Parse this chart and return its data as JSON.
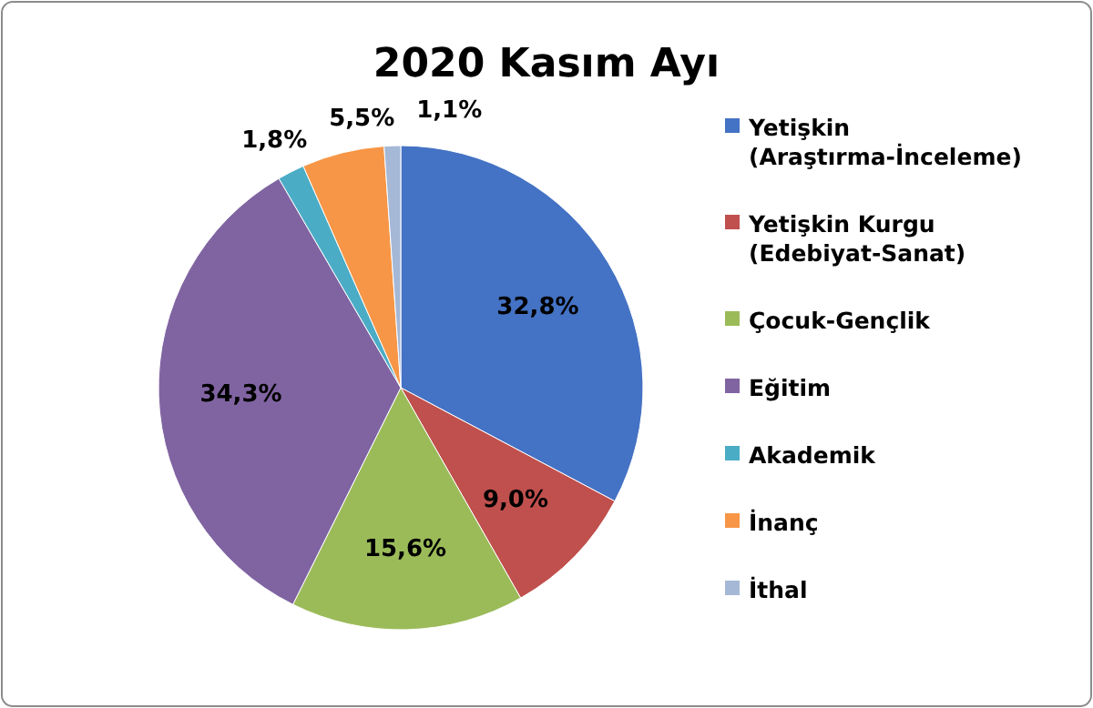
{
  "chart_data": {
    "type": "pie",
    "title": "2020 Kasım Ayı",
    "categories": [
      "Yetişkin (Araştırma-İnceleme)",
      "Yetişkin Kurgu (Edebiyat-Sanat)",
      "Çocuk-Gençlik",
      "Eğitim",
      "Akademik",
      "İnanç",
      "İthal"
    ],
    "values": [
      32.8,
      9.0,
      15.6,
      34.3,
      1.8,
      5.5,
      1.1
    ],
    "value_labels": [
      "32,8%",
      "9,0%",
      "15,6%",
      "34,3%",
      "1,8%",
      "5,5%",
      "1,1%"
    ],
    "colors": [
      "#4472c4",
      "#c0504d",
      "#9bbb59",
      "#8064a2",
      "#4bacc6",
      "#f79646",
      "#a5b8d6"
    ],
    "legend": "right"
  }
}
